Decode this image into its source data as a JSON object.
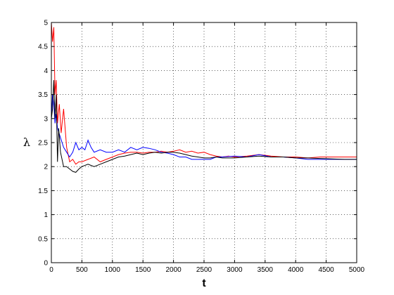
{
  "chart_data": {
    "type": "line",
    "title": "",
    "xlabel": "t",
    "ylabel": "λ",
    "xlim": [
      0,
      5000
    ],
    "ylim": [
      0,
      5
    ],
    "grid": true,
    "grid_style": "dotted",
    "xticks": [
      0,
      500,
      1000,
      1500,
      2000,
      2500,
      3000,
      3500,
      4000,
      4500,
      5000
    ],
    "xtick_labels": [
      "0",
      "500",
      "1000",
      "1500",
      "2000",
      "2500",
      "3000",
      "3500",
      "4000",
      "4500",
      "5000"
    ],
    "yticks": [
      0,
      0.5,
      1,
      1.5,
      2,
      2.5,
      3,
      3.5,
      4,
      4.5,
      5
    ],
    "ytick_labels": [
      "0",
      "0.5",
      "1",
      "1.5",
      "2",
      "2.5",
      "3",
      "3.5",
      "4",
      "4.5",
      "5"
    ],
    "series": [
      {
        "color": "#ff0000",
        "x": [
          0,
          20,
          40,
          60,
          80,
          100,
          130,
          160,
          200,
          250,
          300,
          350,
          400,
          450,
          500,
          600,
          700,
          800,
          900,
          1000,
          1100,
          1200,
          1300,
          1400,
          1500,
          1600,
          1700,
          1800,
          1900,
          2000,
          2100,
          2200,
          2300,
          2400,
          2500,
          2600,
          2700,
          2800,
          2900,
          3000,
          3200,
          3400,
          3600,
          3800,
          4000,
          4200,
          4400,
          4600,
          4800,
          5000
        ],
        "y": [
          5.0,
          4.6,
          4.9,
          3.5,
          3.8,
          2.9,
          3.3,
          2.7,
          3.2,
          2.4,
          2.1,
          2.15,
          2.05,
          2.1,
          2.1,
          2.15,
          2.2,
          2.1,
          2.15,
          2.2,
          2.25,
          2.28,
          2.3,
          2.3,
          2.28,
          2.3,
          2.3,
          2.32,
          2.3,
          2.32,
          2.35,
          2.3,
          2.32,
          2.28,
          2.3,
          2.25,
          2.22,
          2.2,
          2.22,
          2.2,
          2.22,
          2.25,
          2.22,
          2.2,
          2.2,
          2.18,
          2.2,
          2.2,
          2.2,
          2.2
        ]
      },
      {
        "color": "#0000ff",
        "x": [
          0,
          20,
          40,
          60,
          80,
          100,
          150,
          200,
          250,
          300,
          350,
          400,
          450,
          500,
          550,
          600,
          650,
          700,
          800,
          900,
          1000,
          1100,
          1200,
          1300,
          1400,
          1500,
          1600,
          1700,
          1800,
          1900,
          2000,
          2100,
          2200,
          2300,
          2400,
          2500,
          2600,
          2700,
          2800,
          3000,
          3200,
          3400,
          3600,
          3800,
          4000,
          4200,
          4400,
          4600,
          4800,
          5000
        ],
        "y": [
          3.0,
          3.5,
          3.3,
          2.9,
          3.1,
          2.8,
          2.6,
          2.4,
          2.3,
          2.2,
          2.3,
          2.5,
          2.35,
          2.4,
          2.35,
          2.55,
          2.4,
          2.3,
          2.35,
          2.3,
          2.3,
          2.35,
          2.3,
          2.4,
          2.35,
          2.4,
          2.38,
          2.35,
          2.3,
          2.28,
          2.25,
          2.2,
          2.2,
          2.15,
          2.15,
          2.15,
          2.15,
          2.2,
          2.2,
          2.22,
          2.2,
          2.25,
          2.2,
          2.2,
          2.18,
          2.15,
          2.15,
          2.15,
          2.15,
          2.15
        ]
      },
      {
        "color": "#000000",
        "x": [
          0,
          20,
          40,
          60,
          80,
          100,
          120,
          150,
          200,
          250,
          300,
          350,
          400,
          450,
          500,
          600,
          700,
          800,
          900,
          1000,
          1100,
          1200,
          1300,
          1400,
          1500,
          1600,
          1700,
          1800,
          1900,
          2000,
          2100,
          2200,
          2300,
          2400,
          2500,
          2600,
          2700,
          2800,
          3000,
          3200,
          3400,
          3600,
          3800,
          4000,
          4200,
          4400,
          4600,
          4800,
          5000
        ],
        "y": [
          3.0,
          3.2,
          3.8,
          3.0,
          3.5,
          2.1,
          2.8,
          2.3,
          2.0,
          2.0,
          1.95,
          1.9,
          1.88,
          1.95,
          2.0,
          2.05,
          2.0,
          2.05,
          2.1,
          2.15,
          2.2,
          2.22,
          2.25,
          2.28,
          2.25,
          2.28,
          2.3,
          2.28,
          2.3,
          2.3,
          2.28,
          2.25,
          2.22,
          2.2,
          2.18,
          2.18,
          2.2,
          2.18,
          2.18,
          2.2,
          2.22,
          2.2,
          2.2,
          2.18,
          2.18,
          2.17,
          2.16,
          2.15,
          2.15
        ]
      }
    ]
  }
}
